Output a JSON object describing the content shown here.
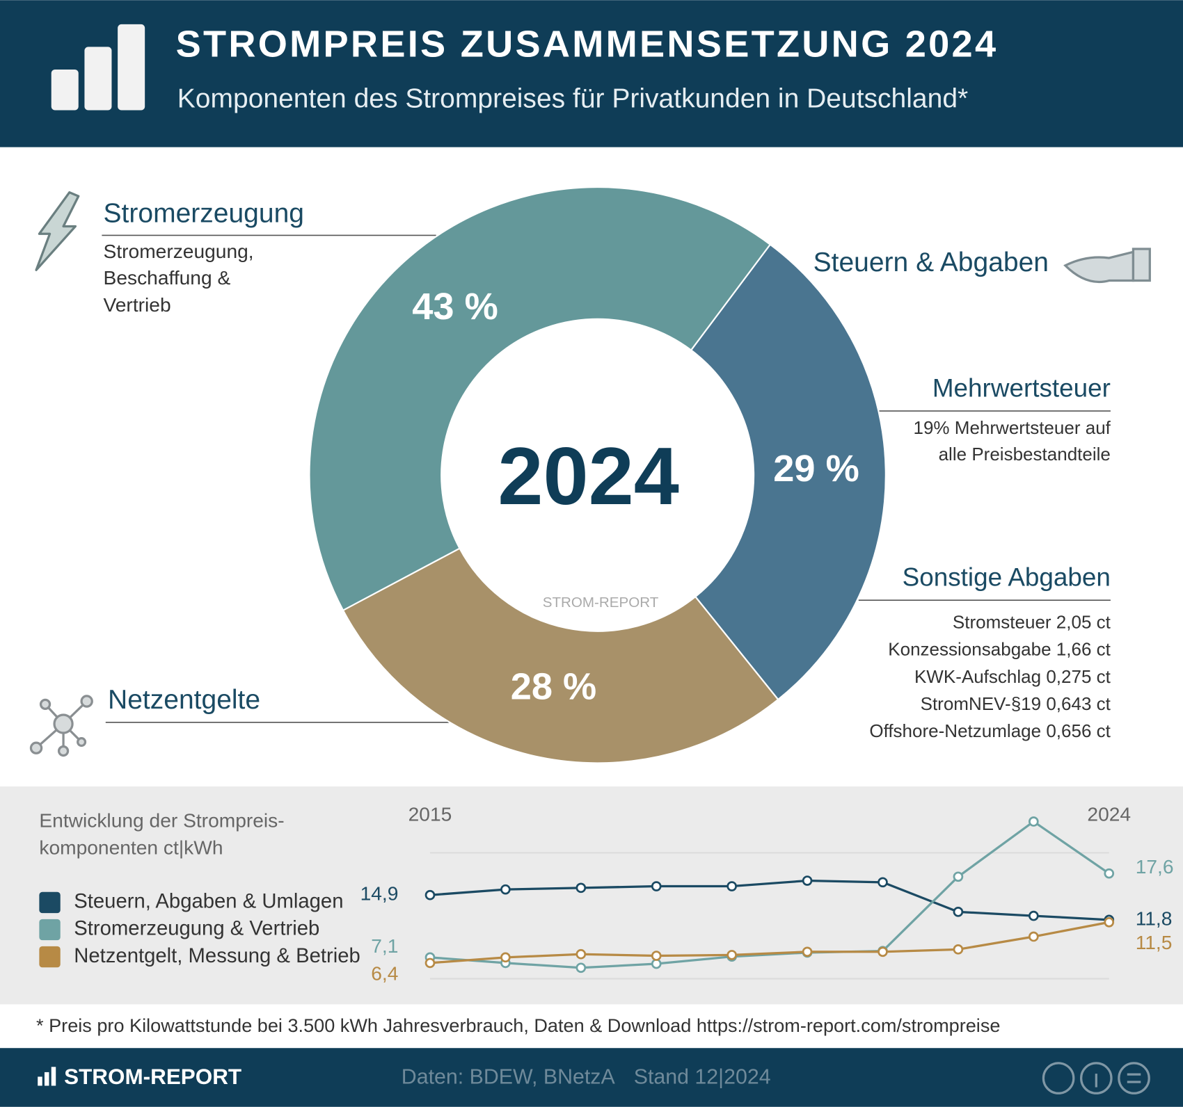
{
  "header": {
    "title": "STROMPREIS ZUSAMMENSETZUNG 2024",
    "subtitle": "Komponenten des Strompreises für Privatkunden in Deutschland*"
  },
  "chart_data": [
    {
      "type": "donut",
      "center_label": "2024",
      "categories": [
        "Steuern & Abgaben",
        "Netzentgelte",
        "Stromerzeugung"
      ],
      "values": [
        29,
        28,
        43
      ],
      "value_labels": [
        "29 %",
        "28 %",
        "43 %"
      ],
      "colors": [
        "#4a7590",
        "#a89169",
        "#64989a"
      ]
    },
    {
      "type": "line",
      "title": [
        "Entwicklung der Strompreis-",
        "komponenten ct|kWh"
      ],
      "x": [
        2015,
        2016,
        2017,
        2018,
        2019,
        2020,
        2021,
        2022,
        2023,
        2024
      ],
      "xlim": [
        2015,
        2024
      ],
      "xticks": [
        2015,
        2024
      ],
      "ylim": [
        5,
        26
      ],
      "series": [
        {
          "name": "Steuern, Abgaben & Umlagen",
          "color": "#1b4a63",
          "values": [
            14.9,
            15.6,
            15.8,
            16.0,
            16.0,
            16.7,
            16.5,
            12.8,
            12.3,
            11.8
          ],
          "value_labels": [
            "14,9",
            null,
            null,
            null,
            null,
            null,
            null,
            null,
            null,
            "11,8"
          ]
        },
        {
          "name": "Stromerzeugung & Vertrieb",
          "color": "#6fa3a4",
          "values": [
            7.1,
            6.4,
            5.8,
            6.3,
            7.2,
            7.7,
            7.9,
            17.2,
            24.1,
            17.6
          ],
          "value_labels": [
            "7,1",
            null,
            null,
            null,
            null,
            null,
            null,
            null,
            null,
            "17,6"
          ]
        },
        {
          "name": "Netzentgelt, Messung & Betrieb",
          "color": "#b78a45",
          "values": [
            6.4,
            7.1,
            7.5,
            7.3,
            7.4,
            7.8,
            7.8,
            8.1,
            9.7,
            11.5
          ],
          "value_labels": [
            "6,4",
            null,
            null,
            null,
            null,
            null,
            null,
            null,
            null,
            "11,5"
          ]
        }
      ]
    }
  ],
  "annotations": [
    {
      "lines": [
        "Stromerzeugung,",
        "Beschaffung &",
        "Vertrieb"
      ]
    },
    {
      "title": "Mehrwertsteuer",
      "lines": [
        "19% Mehrwertsteuer auf",
        "alle Preisbestandteile"
      ]
    },
    {
      "title": "Sonstige Abgaben",
      "lines": [
        "Stromsteuer 2,05 ct",
        "Konzessionsabgabe 1,66 ct",
        "KWK-Aufschlag 0,275 ct",
        "StromNEV-§19 0,643 ct",
        "Offshore-Netzumlage 0,656 ct"
      ]
    }
  ],
  "watermark": "STROM-REPORT",
  "footnote": "* Preis pro Kilowattstunde bei 3.500 kWh Jahresverbrauch, Daten & Download https://strom-report.com/strompreise",
  "footer": {
    "brand": "STROM-REPORT",
    "source": "Daten: BDEW, BNetzA",
    "date": "Stand 12|2024"
  }
}
